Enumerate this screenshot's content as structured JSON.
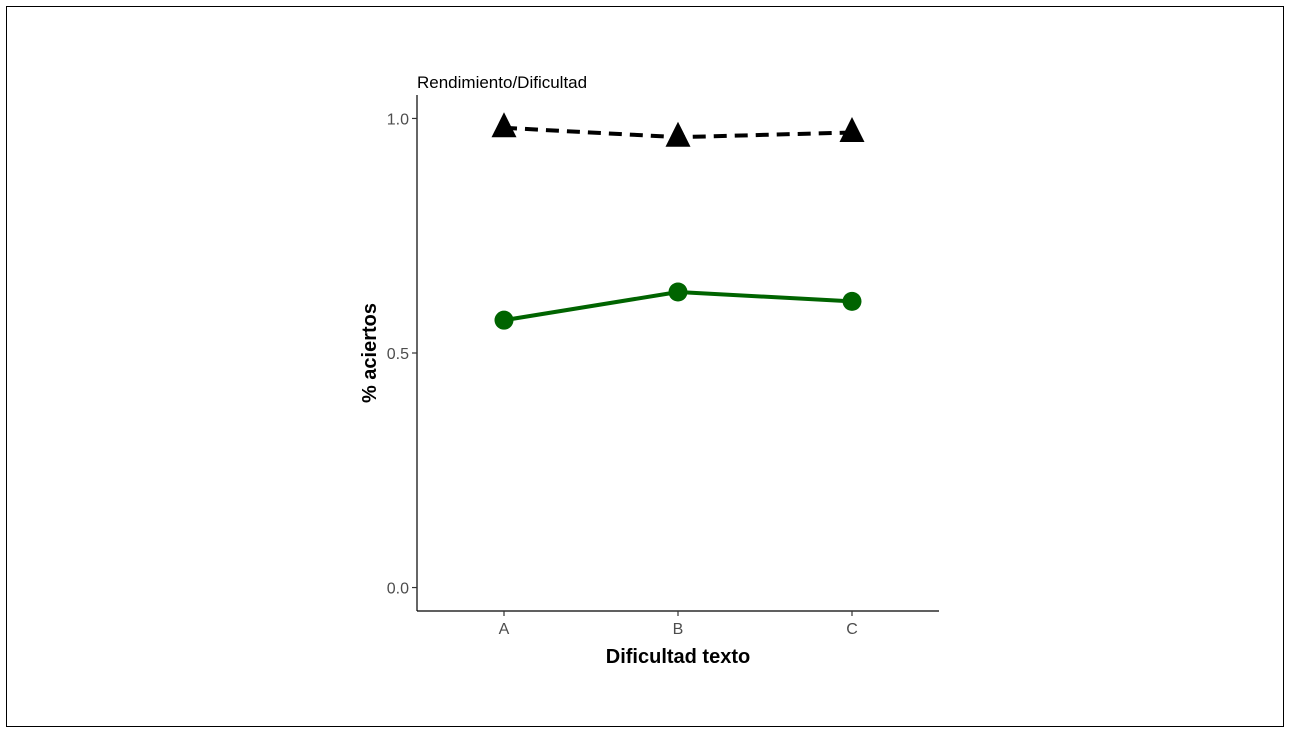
{
  "chart_data": {
    "type": "line",
    "title": "Rendimiento/Dificultad",
    "xlabel": "Dificultad texto",
    "ylabel": "% aciertos",
    "categories": [
      "A",
      "B",
      "C"
    ],
    "ylim": [
      -0.05,
      1.05
    ],
    "yticks": [
      0.0,
      0.5,
      1.0
    ],
    "ytick_labels": [
      "0.0",
      "0.5",
      "1.0"
    ],
    "grid": false,
    "legend": "none",
    "series": [
      {
        "values": [
          0.98,
          0.96,
          0.97
        ],
        "color": "#000000",
        "line_style": "dashed",
        "marker": "triangle"
      },
      {
        "values": [
          0.57,
          0.63,
          0.61
        ],
        "color": "#006400",
        "line_style": "solid",
        "marker": "circle"
      }
    ]
  }
}
